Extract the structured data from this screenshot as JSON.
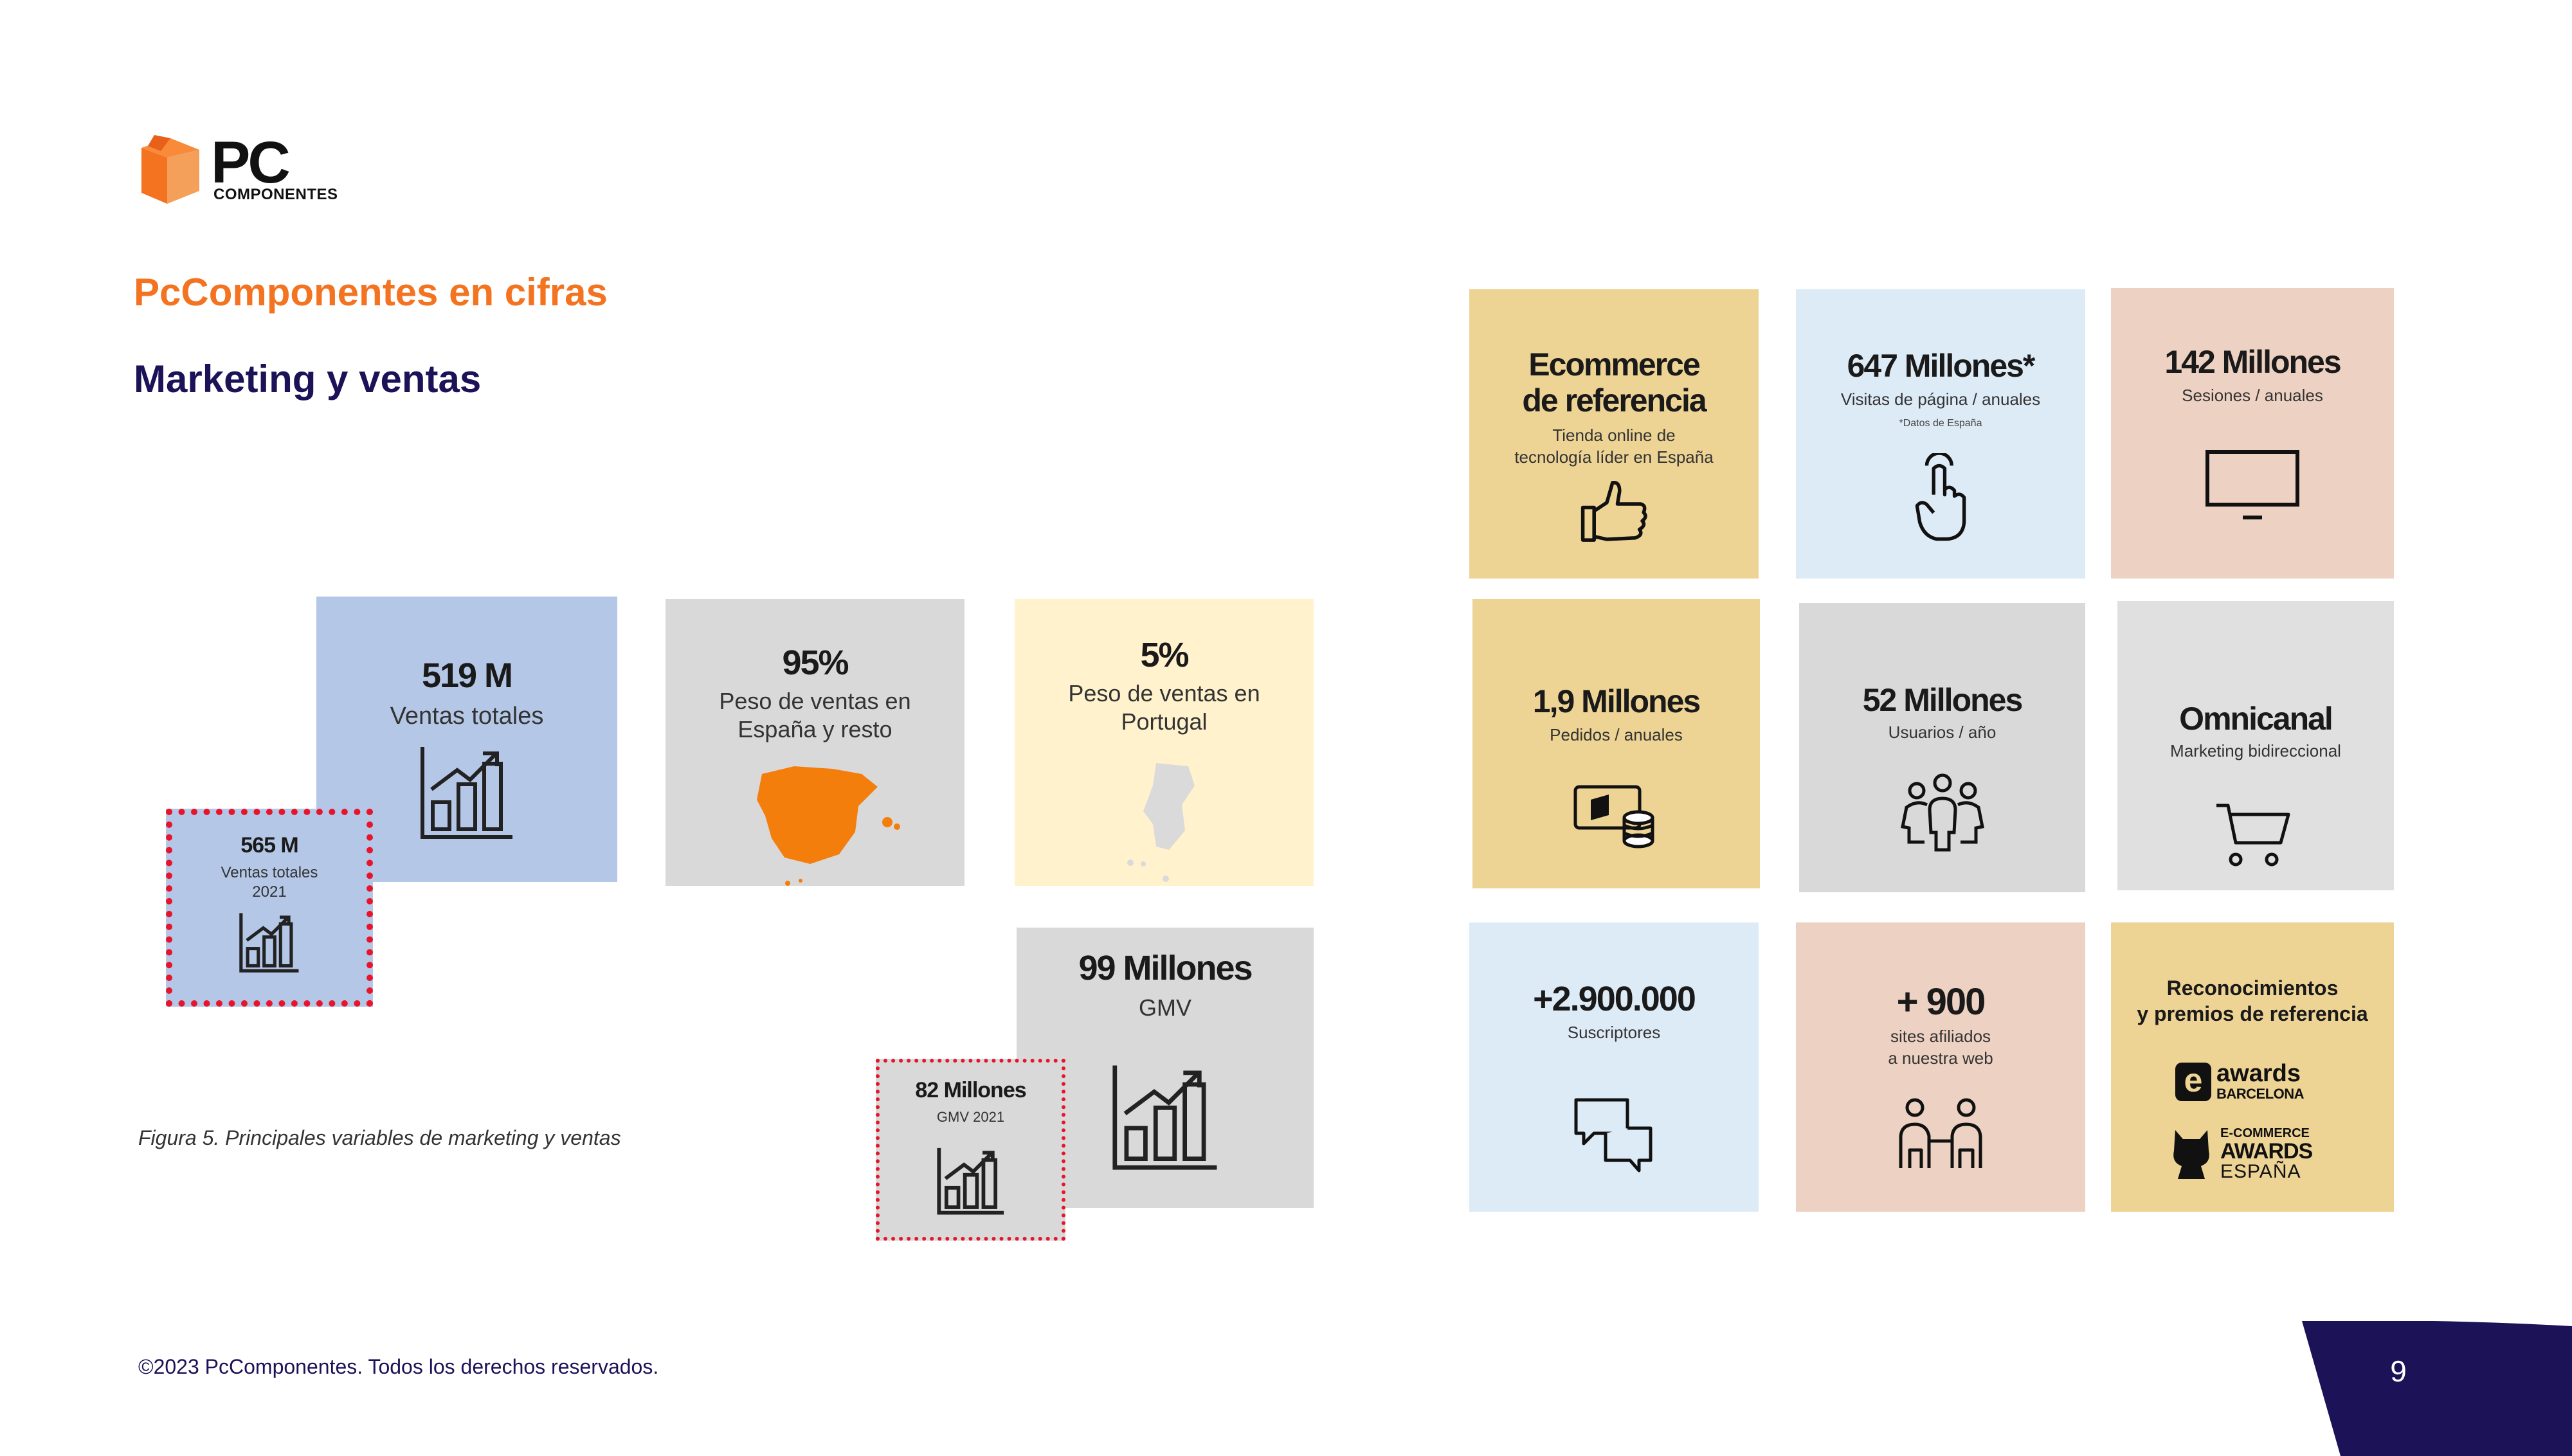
{
  "brand": {
    "logo_text": "PC",
    "logo_sub": "COMPONENTES",
    "orange": "#F47321",
    "navy": "#1B1257"
  },
  "header": {
    "title": "PcComponentes en cifras",
    "subtitle": "Marketing y ventas"
  },
  "figure": {
    "caption": "Figura 5. Principales variables de marketing y ventas",
    "ventas": {
      "value": "519 M",
      "label": "Ventas totales"
    },
    "ventas_2021": {
      "value": "565 M",
      "label_line1": "Ventas totales",
      "label_line2": "2021"
    },
    "espana": {
      "value": "95%",
      "label_line1": "Peso de ventas en",
      "label_line2": "España y resto"
    },
    "portugal": {
      "value": "5%",
      "label_line1": "Peso de ventas en",
      "label_line2": "Portugal"
    },
    "gmv": {
      "value": "99 Millones",
      "label": "GMV"
    },
    "gmv_2021": {
      "value": "82 Millones",
      "label": "GMV 2021"
    }
  },
  "tiles": {
    "ecommerce": {
      "title_line1": "Ecommerce",
      "title_line2": "de referencia",
      "desc_line1": "Tienda online de",
      "desc_line2": "tecnología líder en España",
      "icon": "thumbs-up-icon"
    },
    "visitas": {
      "value": "647 Millones*",
      "label": "Visitas de página / anuales",
      "note": "*Datos de España",
      "icon": "pointer-hand-icon"
    },
    "sesiones": {
      "value": "142 Millones",
      "label": "Sesiones / anuales",
      "icon": "monitor-icon"
    },
    "pedidos": {
      "value": "1,9 Millones",
      "label": "Pedidos / anuales",
      "icon": "wallet-coins-icon"
    },
    "usuarios": {
      "value": "52 Millones",
      "label": "Usuarios / año",
      "icon": "users-icon"
    },
    "omnicanal": {
      "value": "Omnicanal",
      "label": "Marketing bidireccional",
      "icon": "cart-icon"
    },
    "suscriptores": {
      "value": "+2.900.000",
      "label": "Suscriptores",
      "icon": "chat-icon"
    },
    "afiliados": {
      "value": "+ 900",
      "label_line1": "sites afiliados",
      "label_line2": "a nuestra web",
      "icon": "people-icon"
    },
    "premios": {
      "title_line1": "Reconocimientos",
      "title_line2": "y premios de referencia",
      "award1_mark": "e",
      "award1_line1": "awards",
      "award1_line2": "BARCELONA",
      "award2_line1": "E-COMMERCE",
      "award2_line2": "AWARDS",
      "award2_line3": "ESPAÑA"
    }
  },
  "footer": {
    "copyright": "©2023 PcComponentes. Todos los derechos reservados.",
    "page_number": "9"
  }
}
